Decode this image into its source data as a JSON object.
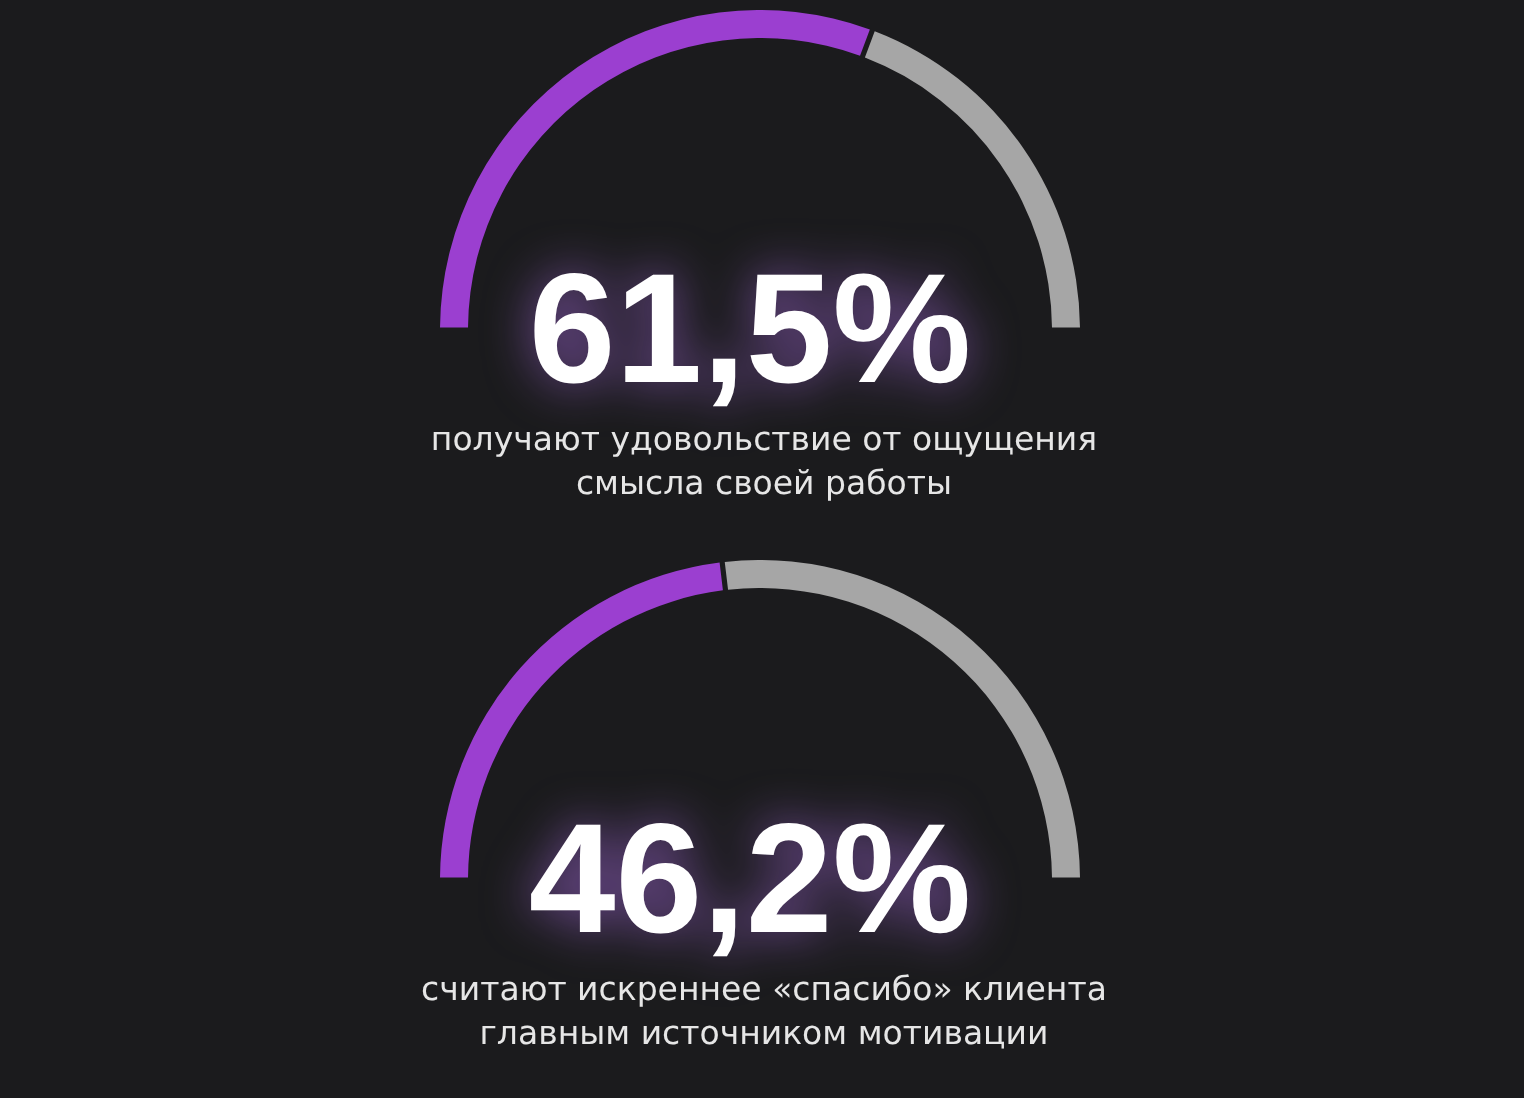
{
  "chart_data": [
    {
      "type": "donut",
      "categories": [
        null,
        null
      ],
      "values": [
        61.5,
        38.5
      ],
      "colors": [
        "#9b3fd0",
        "#a6a6a6"
      ],
      "annotations": [
        "61,5%",
        "получают удовольствие от ощущения\nсмысла своей работы"
      ]
    },
    {
      "type": "donut",
      "categories": [
        null,
        null
      ],
      "values": [
        46.2,
        53.8
      ],
      "colors": [
        "#9b3fd0",
        "#a6a6a6"
      ],
      "annotations": [
        "46,2%",
        "считают искреннее «спасибо» клиента\nглавным источником мотивации"
      ]
    }
  ]
}
